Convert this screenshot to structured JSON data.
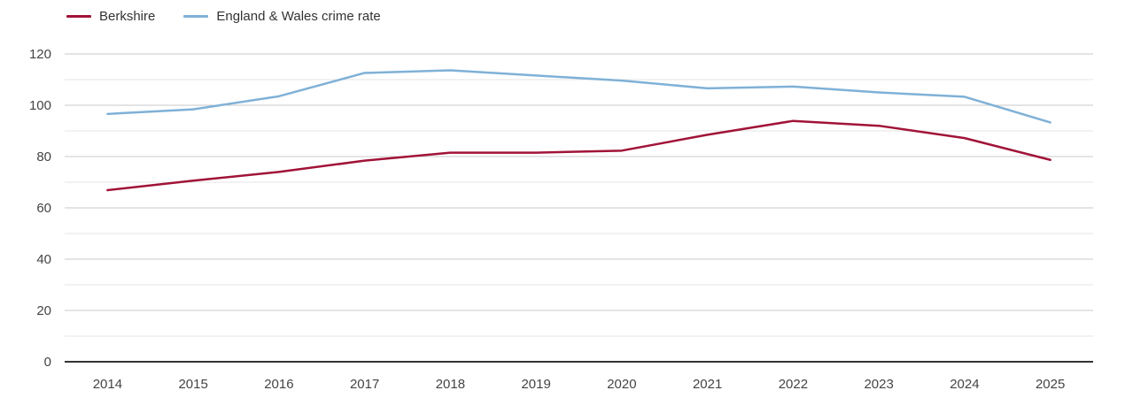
{
  "chart_data": {
    "type": "line",
    "title": "",
    "xlabel": "",
    "ylabel": "",
    "categories": [
      "2014",
      "2015",
      "2016",
      "2017",
      "2018",
      "2019",
      "2020",
      "2021",
      "2022",
      "2023",
      "2024",
      "2025"
    ],
    "series": [
      {
        "name": "Berkshire",
        "color": "#a11338",
        "values": [
          66.9,
          70.6,
          74.0,
          78.4,
          81.5,
          81.5,
          82.3,
          88.5,
          93.9,
          92.0,
          87.2,
          78.7
        ]
      },
      {
        "name": "England & Wales crime rate",
        "color": "#7fb1d7",
        "values": [
          96.6,
          98.4,
          103.5,
          112.6,
          113.6,
          111.6,
          109.6,
          106.6,
          107.3,
          105.0,
          103.3,
          93.3
        ]
      }
    ],
    "ylim": [
      0,
      120
    ],
    "y_ticks": [
      0,
      20,
      40,
      60,
      80,
      100,
      120
    ],
    "y_minor_ticks": [
      10,
      30,
      50,
      70,
      90,
      110
    ],
    "grid": true,
    "legend_position": "top-left",
    "colors": {
      "axis_line": "#333333",
      "major_gridline": "#c9c9c9",
      "minor_gridline": "#e4e4e4",
      "tick_label": "#444444"
    }
  }
}
